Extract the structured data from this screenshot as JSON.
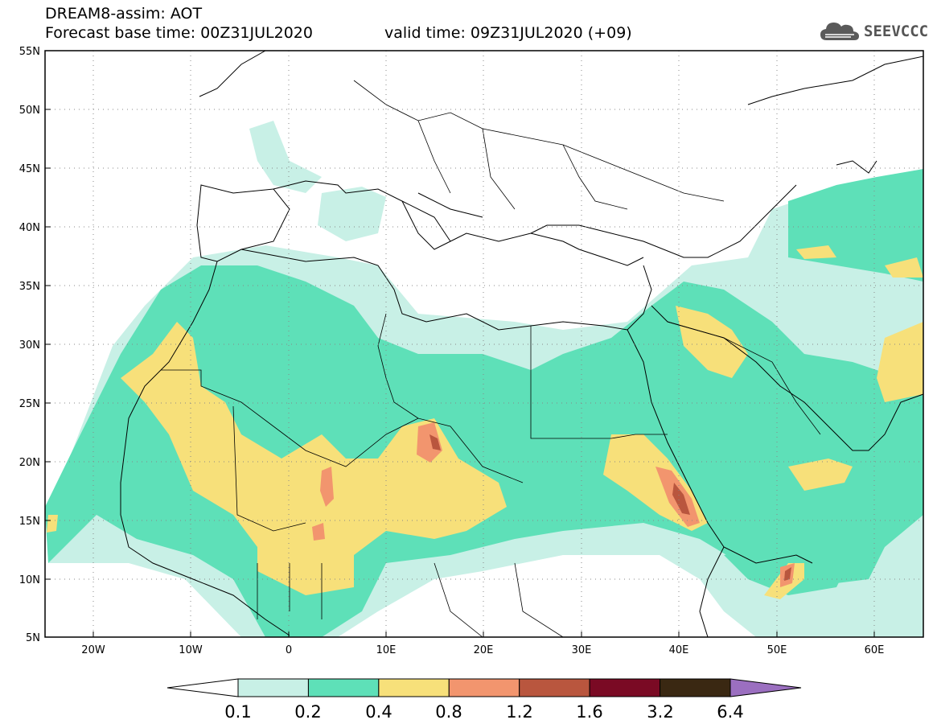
{
  "header": {
    "title_line1": "DREAM8-assim: AOT",
    "title_line2": "Forecast base time: 00Z31JUL2020",
    "valid_time": "valid time: 09Z31JUL2020 (+09)",
    "logo_text": "SEEVCCC",
    "logo_icon": "cloud-icon"
  },
  "axes": {
    "lat_labels": [
      "55N",
      "50N",
      "45N",
      "40N",
      "35N",
      "30N",
      "25N",
      "20N",
      "15N",
      "10N",
      "5N"
    ],
    "lon_labels": [
      "20W",
      "10W",
      "0",
      "10E",
      "20E",
      "30E",
      "40E",
      "50E",
      "60E"
    ],
    "lat_range": [
      5,
      55
    ],
    "lon_range": [
      -25,
      65
    ]
  },
  "colorbar": {
    "labels": [
      "0.1",
      "0.2",
      "0.4",
      "0.8",
      "1.2",
      "1.6",
      "3.2",
      "6.4"
    ],
    "colors": [
      "#ffffff",
      "#c8f0e6",
      "#5ee0b8",
      "#f7e07a",
      "#f2956e",
      "#b9563e",
      "#7a0a24",
      "#3a2812",
      "#9b6fc0"
    ]
  }
}
